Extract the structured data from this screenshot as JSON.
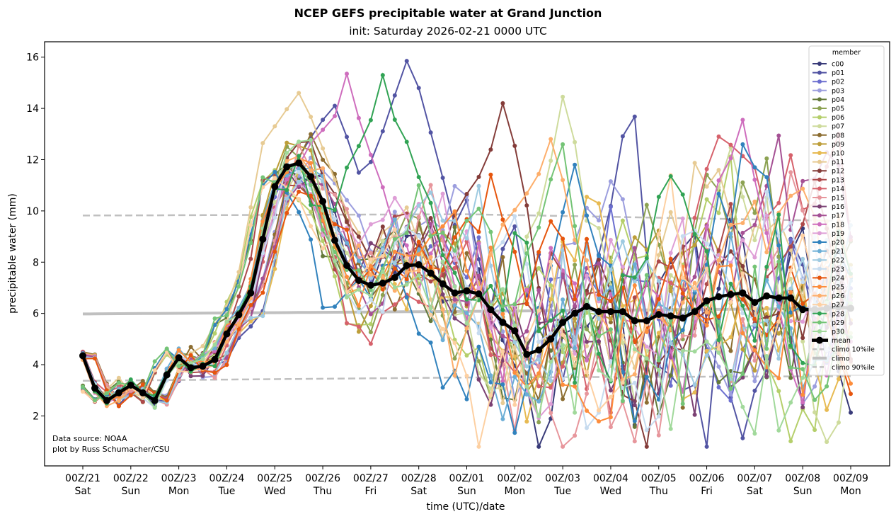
{
  "chart_data": {
    "type": "line",
    "title": "NCEP GEFS precipitable water at Grand Junction",
    "subtitle": "init: Saturday 2026-02-21 0000 UTC",
    "xlabel": "time (UTC)/date",
    "ylabel": "precipitable water (mm)",
    "x_step_hours": 6,
    "x_points": 65,
    "ylim": [
      0.05,
      16.6
    ],
    "xlim_days": [
      -0.8,
      16.8
    ],
    "grid": false,
    "yticks": [
      2,
      4,
      6,
      8,
      10,
      12,
      14,
      16
    ],
    "xticks": [
      {
        "day": 0,
        "label": "00Z/21",
        "weekday": "Sat"
      },
      {
        "day": 1,
        "label": "00Z/22",
        "weekday": "Sun"
      },
      {
        "day": 2,
        "label": "00Z/23",
        "weekday": "Mon"
      },
      {
        "day": 3,
        "label": "00Z/24",
        "weekday": "Tue"
      },
      {
        "day": 4,
        "label": "00Z/25",
        "weekday": "Wed"
      },
      {
        "day": 5,
        "label": "00Z/26",
        "weekday": "Thu"
      },
      {
        "day": 6,
        "label": "00Z/27",
        "weekday": "Fri"
      },
      {
        "day": 7,
        "label": "00Z/28",
        "weekday": "Sat"
      },
      {
        "day": 8,
        "label": "00Z/01",
        "weekday": "Sun"
      },
      {
        "day": 9,
        "label": "00Z/02",
        "weekday": "Mon"
      },
      {
        "day": 10,
        "label": "00Z/03",
        "weekday": "Tue"
      },
      {
        "day": 11,
        "label": "00Z/04",
        "weekday": "Wed"
      },
      {
        "day": 12,
        "label": "00Z/05",
        "weekday": "Thu"
      },
      {
        "day": 13,
        "label": "00Z/06",
        "weekday": "Fri"
      },
      {
        "day": 14,
        "label": "00Z/07",
        "weekday": "Sat"
      },
      {
        "day": 15,
        "label": "00Z/08",
        "weekday": "Sun"
      },
      {
        "day": 16,
        "label": "00Z/09",
        "weekday": "Mon"
      }
    ],
    "legend": {
      "title": "member",
      "position": "top-right"
    },
    "mean": {
      "name": "mean",
      "color": "#000000",
      "values": [
        4.35,
        3.08,
        2.6,
        2.9,
        3.2,
        2.9,
        2.6,
        3.6,
        4.27,
        3.88,
        3.94,
        4.2,
        5.2,
        5.95,
        6.8,
        8.9,
        10.95,
        11.72,
        11.87,
        11.34,
        10.37,
        8.85,
        7.87,
        7.29,
        7.1,
        7.18,
        7.4,
        7.87,
        7.9,
        7.57,
        7.15,
        6.8,
        6.88,
        6.76,
        6.15,
        5.65,
        5.32,
        4.4,
        4.57,
        5.0,
        5.65,
        6.0,
        6.27,
        6.07,
        6.07,
        6.07,
        5.71,
        5.71,
        5.96,
        5.9,
        5.82,
        6.07,
        6.49,
        6.65,
        6.74,
        6.8,
        6.43,
        6.68,
        6.6,
        6.6,
        6.15,
        6.15,
        6.2,
        6.25,
        6.2
      ]
    },
    "climo": [
      {
        "name": "climo 10%ile",
        "style": "dashed",
        "color": "#c0c0c0",
        "start": 3.37,
        "mid": 3.5,
        "end": 3.55
      },
      {
        "name": "climo",
        "style": "solid",
        "color": "#c0c0c0",
        "start": 5.98,
        "mid": 6.08,
        "end": 6.2
      },
      {
        "name": "climo 90%ile",
        "style": "dashed",
        "color": "#c0c0c0",
        "start": 9.82,
        "mid": 9.87,
        "end": 9.6
      }
    ],
    "members": [
      {
        "name": "c00",
        "color": "#393b79",
        "seed": 1,
        "spread": 1.0
      },
      {
        "name": "p01",
        "color": "#5254a3",
        "seed": 2,
        "spread": 1.2,
        "peaks": [
          [
            27,
            15.85
          ],
          [
            21,
            14.1
          ]
        ]
      },
      {
        "name": "p02",
        "color": "#6b6ecf",
        "seed": 3,
        "spread": 1.0
      },
      {
        "name": "p03",
        "color": "#9c9ede",
        "seed": 4,
        "spread": 1.0
      },
      {
        "name": "p04",
        "color": "#637939",
        "seed": 5,
        "spread": 1.0
      },
      {
        "name": "p05",
        "color": "#8ca252",
        "seed": 6,
        "spread": 1.0
      },
      {
        "name": "p06",
        "color": "#b5cf6b",
        "seed": 7,
        "spread": 1.0
      },
      {
        "name": "p07",
        "color": "#cedb9c",
        "seed": 8,
        "spread": 1.0,
        "peaks": [
          [
            40,
            14.45
          ]
        ]
      },
      {
        "name": "p08",
        "color": "#8c6d31",
        "seed": 9,
        "spread": 1.0
      },
      {
        "name": "p09",
        "color": "#bd9e39",
        "seed": 10,
        "spread": 1.0
      },
      {
        "name": "p10",
        "color": "#e7ba52",
        "seed": 11,
        "spread": 1.0
      },
      {
        "name": "p11",
        "color": "#e7cb94",
        "seed": 12,
        "spread": 1.0,
        "peaks": [
          [
            18,
            14.6
          ]
        ]
      },
      {
        "name": "p12",
        "color": "#843c39",
        "seed": 13,
        "spread": 1.0,
        "peaks": [
          [
            35,
            14.2
          ]
        ]
      },
      {
        "name": "p13",
        "color": "#ad494a",
        "seed": 14,
        "spread": 1.0
      },
      {
        "name": "p14",
        "color": "#d6616b",
        "seed": 15,
        "spread": 1.0,
        "peaks": [
          [
            53,
            12.9
          ]
        ]
      },
      {
        "name": "p15",
        "color": "#e7969c",
        "seed": 16,
        "spread": 1.0
      },
      {
        "name": "p16",
        "color": "#7b4173",
        "seed": 17,
        "spread": 1.0
      },
      {
        "name": "p17",
        "color": "#a55194",
        "seed": 18,
        "spread": 1.0
      },
      {
        "name": "p18",
        "color": "#ce6dbd",
        "seed": 19,
        "spread": 1.1,
        "peaks": [
          [
            22,
            15.35
          ],
          [
            55,
            13.55
          ]
        ]
      },
      {
        "name": "p19",
        "color": "#de9ed6",
        "seed": 20,
        "spread": 1.0
      },
      {
        "name": "p20",
        "color": "#3182bd",
        "seed": 21,
        "spread": 1.0,
        "peaks": [
          [
            41,
            11.8
          ]
        ]
      },
      {
        "name": "p21",
        "color": "#6baed6",
        "seed": 22,
        "spread": 1.0
      },
      {
        "name": "p22",
        "color": "#9ecae1",
        "seed": 23,
        "spread": 1.0
      },
      {
        "name": "p23",
        "color": "#c6dbef",
        "seed": 24,
        "spread": 1.0
      },
      {
        "name": "p24",
        "color": "#e6550d",
        "seed": 25,
        "spread": 1.0
      },
      {
        "name": "p25",
        "color": "#fd8d3c",
        "seed": 26,
        "spread": 1.0
      },
      {
        "name": "p26",
        "color": "#fdae6b",
        "seed": 27,
        "spread": 1.0,
        "peaks": [
          [
            39,
            12.8
          ]
        ]
      },
      {
        "name": "p27",
        "color": "#fdd0a2",
        "seed": 28,
        "spread": 1.0
      },
      {
        "name": "p28",
        "color": "#31a354",
        "seed": 29,
        "spread": 1.1,
        "peaks": [
          [
            25,
            15.3
          ],
          [
            49,
            11.35
          ]
        ]
      },
      {
        "name": "p29",
        "color": "#74c476",
        "seed": 30,
        "spread": 1.0
      },
      {
        "name": "p30",
        "color": "#a1d99b",
        "seed": 31,
        "spread": 1.0
      }
    ]
  },
  "annotation": {
    "line1": "Data source: NOAA",
    "line2": "plot by Russ Schumacher/CSU"
  }
}
